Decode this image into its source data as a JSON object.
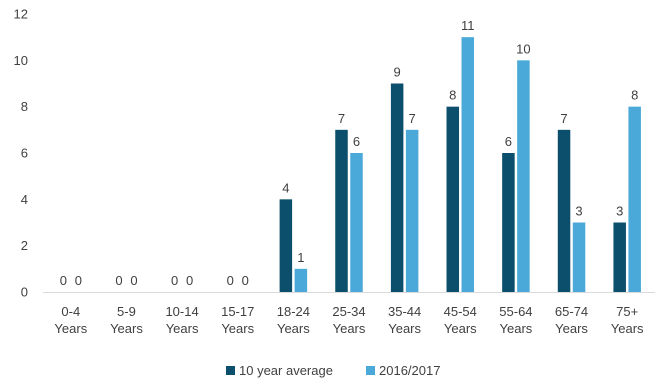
{
  "chart_data": {
    "type": "bar",
    "categories": [
      [
        "0-4",
        "Years"
      ],
      [
        "5-9",
        "Years"
      ],
      [
        "10-14",
        "Years"
      ],
      [
        "15-17",
        "Years"
      ],
      [
        "18-24",
        "Years"
      ],
      [
        "25-34",
        "Years"
      ],
      [
        "35-44",
        "Years"
      ],
      [
        "45-54",
        "Years"
      ],
      [
        "55-64",
        "Years"
      ],
      [
        "65-74",
        "Years"
      ],
      [
        "75+",
        "Years"
      ]
    ],
    "series": [
      {
        "name": "10 year average",
        "color": "#0b4f6c",
        "values": [
          0,
          0,
          0,
          0,
          4,
          7,
          9,
          8,
          6,
          7,
          3
        ]
      },
      {
        "name": "2016/2017",
        "color": "#4aa9d8",
        "values": [
          0,
          0,
          0,
          0,
          1,
          6,
          7,
          11,
          10,
          3,
          8
        ]
      }
    ],
    "ylim": [
      0,
      12
    ],
    "yticks": [
      0,
      2,
      4,
      6,
      8,
      10,
      12
    ],
    "grid": false,
    "legend": "bottom-center",
    "title": "",
    "xlabel": "",
    "ylabel": ""
  }
}
